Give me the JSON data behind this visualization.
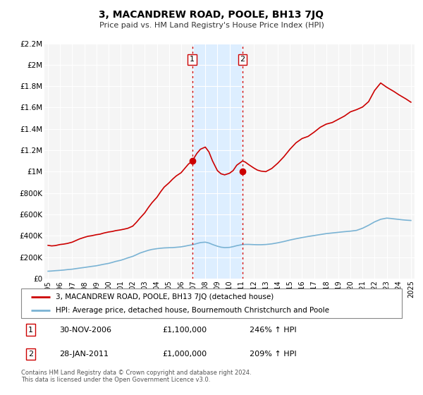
{
  "title": "3, MACANDREW ROAD, POOLE, BH13 7JQ",
  "subtitle": "Price paid vs. HM Land Registry's House Price Index (HPI)",
  "ylim": [
    0,
    2200000
  ],
  "xlim_start": 1994.7,
  "xlim_end": 2025.3,
  "yticks": [
    0,
    200000,
    400000,
    600000,
    800000,
    1000000,
    1200000,
    1400000,
    1600000,
    1800000,
    2000000,
    2200000
  ],
  "ytick_labels": [
    "£0",
    "£200K",
    "£400K",
    "£600K",
    "£800K",
    "£1M",
    "£1.2M",
    "£1.4M",
    "£1.6M",
    "£1.8M",
    "£2M",
    "£2.2M"
  ],
  "xticks": [
    1995,
    1996,
    1997,
    1998,
    1999,
    2000,
    2001,
    2002,
    2003,
    2004,
    2005,
    2006,
    2007,
    2008,
    2009,
    2010,
    2011,
    2012,
    2013,
    2014,
    2015,
    2016,
    2017,
    2018,
    2019,
    2020,
    2021,
    2022,
    2023,
    2024,
    2025
  ],
  "property_color": "#cc0000",
  "hpi_color": "#7ab3d4",
  "shaded_color": "#ddeeff",
  "vline_color": "#cc0000",
  "bg_color": "#f5f5f5",
  "grid_color": "#ffffff",
  "transaction1_x": 2006.92,
  "transaction1_y": 1100000,
  "transaction2_x": 2011.08,
  "transaction2_y": 1000000,
  "legend_property": "3, MACANDREW ROAD, POOLE, BH13 7JQ (detached house)",
  "legend_hpi": "HPI: Average price, detached house, Bournemouth Christchurch and Poole",
  "note1_num": "1",
  "note1_date": "30-NOV-2006",
  "note1_price": "£1,100,000",
  "note1_hpi": "246% ↑ HPI",
  "note2_num": "2",
  "note2_date": "28-JAN-2011",
  "note2_price": "£1,000,000",
  "note2_hpi": "209% ↑ HPI",
  "footer": "Contains HM Land Registry data © Crown copyright and database right 2024.\nThis data is licensed under the Open Government Licence v3.0.",
  "property_x": [
    1995.0,
    1995.3,
    1995.6,
    1996.0,
    1996.3,
    1996.6,
    1997.0,
    1997.3,
    1997.6,
    1998.0,
    1998.3,
    1998.6,
    1999.0,
    1999.3,
    1999.6,
    2000.0,
    2000.3,
    2000.6,
    2001.0,
    2001.3,
    2001.6,
    2002.0,
    2002.3,
    2002.6,
    2003.0,
    2003.3,
    2003.6,
    2004.0,
    2004.3,
    2004.6,
    2005.0,
    2005.3,
    2005.6,
    2006.0,
    2006.3,
    2006.6,
    2006.92,
    2007.3,
    2007.6,
    2008.0,
    2008.3,
    2008.6,
    2009.0,
    2009.3,
    2009.6,
    2010.0,
    2010.3,
    2010.6,
    2011.08,
    2011.3,
    2011.6,
    2012.0,
    2012.3,
    2012.6,
    2013.0,
    2013.5,
    2014.0,
    2014.5,
    2015.0,
    2015.5,
    2016.0,
    2016.5,
    2017.0,
    2017.5,
    2018.0,
    2018.5,
    2019.0,
    2019.5,
    2020.0,
    2020.5,
    2021.0,
    2021.5,
    2022.0,
    2022.5,
    2023.0,
    2023.3,
    2023.6,
    2024.0,
    2024.3,
    2024.6,
    2025.0
  ],
  "property_y": [
    310000,
    305000,
    308000,
    318000,
    322000,
    328000,
    340000,
    355000,
    370000,
    385000,
    395000,
    400000,
    410000,
    415000,
    425000,
    435000,
    440000,
    448000,
    455000,
    462000,
    470000,
    490000,
    525000,
    565000,
    615000,
    665000,
    710000,
    760000,
    810000,
    855000,
    895000,
    930000,
    960000,
    990000,
    1030000,
    1070000,
    1100000,
    1170000,
    1210000,
    1230000,
    1185000,
    1100000,
    1010000,
    980000,
    970000,
    985000,
    1010000,
    1060000,
    1100000,
    1090000,
    1065000,
    1035000,
    1015000,
    1005000,
    1000000,
    1030000,
    1080000,
    1140000,
    1210000,
    1270000,
    1310000,
    1330000,
    1370000,
    1415000,
    1445000,
    1460000,
    1490000,
    1520000,
    1560000,
    1580000,
    1605000,
    1655000,
    1760000,
    1830000,
    1790000,
    1770000,
    1750000,
    1720000,
    1700000,
    1680000,
    1650000
  ],
  "hpi_x": [
    1995.0,
    1995.3,
    1995.6,
    1996.0,
    1996.3,
    1996.6,
    1997.0,
    1997.3,
    1997.6,
    1998.0,
    1998.3,
    1998.6,
    1999.0,
    1999.3,
    1999.6,
    2000.0,
    2000.3,
    2000.6,
    2001.0,
    2001.3,
    2001.6,
    2002.0,
    2002.3,
    2002.6,
    2003.0,
    2003.3,
    2003.6,
    2004.0,
    2004.3,
    2004.6,
    2005.0,
    2005.3,
    2005.6,
    2006.0,
    2006.3,
    2006.6,
    2007.0,
    2007.3,
    2007.6,
    2008.0,
    2008.3,
    2008.6,
    2009.0,
    2009.3,
    2009.6,
    2010.0,
    2010.3,
    2010.6,
    2011.0,
    2011.3,
    2011.6,
    2012.0,
    2012.3,
    2012.6,
    2013.0,
    2013.5,
    2014.0,
    2014.5,
    2015.0,
    2015.5,
    2016.0,
    2016.5,
    2017.0,
    2017.5,
    2018.0,
    2018.5,
    2019.0,
    2019.5,
    2020.0,
    2020.5,
    2021.0,
    2021.5,
    2022.0,
    2022.5,
    2023.0,
    2023.3,
    2023.6,
    2024.0,
    2024.3,
    2024.6,
    2025.0
  ],
  "hpi_y": [
    68000,
    70000,
    73000,
    76000,
    79000,
    83000,
    87000,
    92000,
    97000,
    103000,
    108000,
    113000,
    119000,
    126000,
    133000,
    141000,
    150000,
    160000,
    170000,
    181000,
    193000,
    207000,
    222000,
    238000,
    253000,
    264000,
    272000,
    279000,
    283000,
    286000,
    288000,
    289000,
    292000,
    296000,
    302000,
    309000,
    317000,
    327000,
    336000,
    340000,
    332000,
    318000,
    302000,
    293000,
    289000,
    291000,
    298000,
    307000,
    316000,
    319000,
    319000,
    317000,
    316000,
    316000,
    318000,
    324000,
    334000,
    346000,
    360000,
    372000,
    383000,
    393000,
    402000,
    411000,
    420000,
    426000,
    432000,
    438000,
    443000,
    450000,
    470000,
    498000,
    530000,
    554000,
    565000,
    562000,
    558000,
    553000,
    549000,
    546000,
    543000
  ]
}
